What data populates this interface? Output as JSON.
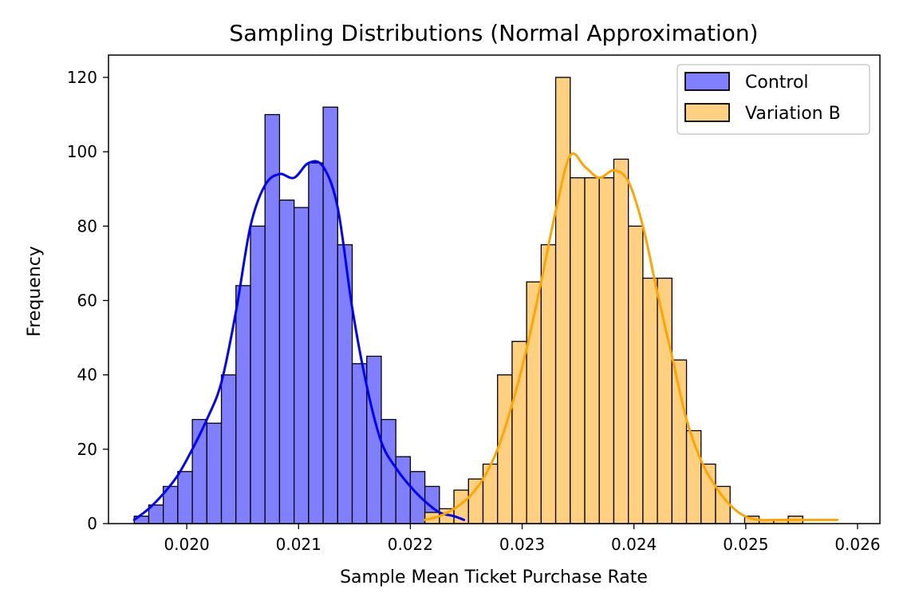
{
  "chart_data": {
    "type": "histogram",
    "title": "Sampling Distributions (Normal Approximation)",
    "xlabel": "Sample Mean Ticket Purchase Rate",
    "ylabel": "Frequency",
    "xlim": [
      0.0193,
      0.0262
    ],
    "ylim": [
      0,
      126
    ],
    "xticks": [
      "0.020",
      "0.021",
      "0.022",
      "0.023",
      "0.024",
      "0.025",
      "0.026"
    ],
    "xtick_values": [
      0.02,
      0.021,
      0.022,
      0.023,
      0.024,
      0.025,
      0.026
    ],
    "yticks": [
      "0",
      "20",
      "40",
      "60",
      "80",
      "100",
      "120"
    ],
    "ytick_values": [
      0,
      20,
      40,
      60,
      80,
      100,
      120
    ],
    "legend_placement": "top-right",
    "grid": false,
    "series": [
      {
        "name": "Control",
        "fill_color": "#8080ff",
        "line_color": "#0000ff",
        "bin_edges": [
          0.01953,
          0.01966,
          0.01979,
          0.01992,
          0.02005,
          0.02018,
          0.02031,
          0.02044,
          0.02057,
          0.0207,
          0.02083,
          0.02096,
          0.02109,
          0.02122,
          0.02135,
          0.02148,
          0.02161,
          0.02174,
          0.02187,
          0.022,
          0.02213,
          0.02226,
          0.02239
        ],
        "counts": [
          2,
          5,
          10,
          14,
          28,
          27,
          40,
          64,
          80,
          110,
          87,
          85,
          97,
          112,
          75,
          43,
          45,
          28,
          18,
          14,
          10,
          3
        ],
        "kde_x": [
          0.01953,
          0.01966,
          0.01979,
          0.01992,
          0.02005,
          0.02018,
          0.02031,
          0.02044,
          0.02057,
          0.0207,
          0.02083,
          0.02096,
          0.02109,
          0.02122,
          0.02135,
          0.02148,
          0.02161,
          0.02174,
          0.02187,
          0.022,
          0.02213,
          0.02226,
          0.02239,
          0.02248
        ],
        "kde_y": [
          1,
          4,
          8,
          13,
          20,
          28,
          38,
          57,
          80,
          91,
          94,
          93,
          97,
          96,
          85,
          58,
          37,
          22,
          15,
          10,
          6,
          3,
          2,
          1
        ]
      },
      {
        "name": "Variation B",
        "fill_color": "#ffd080",
        "line_color": "#ffa500",
        "bin_edges": [
          0.02213,
          0.02226,
          0.02239,
          0.02252,
          0.02265,
          0.02278,
          0.02291,
          0.02304,
          0.02317,
          0.0233,
          0.02343,
          0.02356,
          0.02369,
          0.02382,
          0.02395,
          0.02408,
          0.02421,
          0.02434,
          0.02447,
          0.0246,
          0.02473,
          0.02486,
          0.02499,
          0.02512,
          0.02525,
          0.02538,
          0.02551,
          0.02564,
          0.02577
        ],
        "counts": [
          3,
          4,
          9,
          12,
          16,
          40,
          49,
          65,
          75,
          120,
          93,
          93,
          93,
          98,
          80,
          66,
          66,
          44,
          25,
          16,
          10,
          0,
          2,
          1,
          1,
          2,
          0,
          0
        ],
        "kde_x": [
          0.02213,
          0.02226,
          0.02239,
          0.02252,
          0.02265,
          0.02278,
          0.02291,
          0.02304,
          0.02317,
          0.0233,
          0.02343,
          0.02356,
          0.02369,
          0.02382,
          0.02395,
          0.02408,
          0.02421,
          0.02434,
          0.02447,
          0.0246,
          0.02473,
          0.02486,
          0.02499,
          0.02512,
          0.02525,
          0.02538,
          0.02551,
          0.02564,
          0.02577,
          0.02582
        ],
        "kde_y": [
          1,
          2,
          4,
          7,
          12,
          20,
          32,
          47,
          65,
          84,
          99,
          96,
          93,
          95,
          92,
          80,
          62,
          45,
          28,
          17,
          10,
          5,
          2,
          1,
          1,
          1,
          1,
          1,
          1,
          1
        ]
      }
    ]
  }
}
